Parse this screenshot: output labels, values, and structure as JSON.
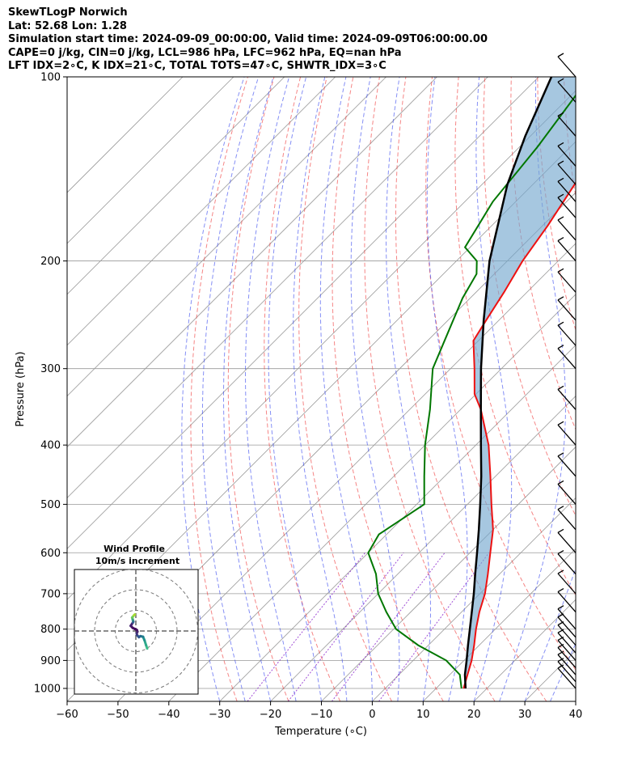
{
  "title_lines": [
    "SkewTLogP Norwich",
    "Lat: 52.68   Lon: 1.28",
    "Simulation start time: 2024-09-09_00:00:00, Valid time: 2024-09-09T06:00:00.00",
    "CAPE=0 j/kg, CIN=0 j/kg, LCL=986 hPa, LFC=962 hPa, EQ=nan hPa",
    "LFT IDX=2∘C, K IDX=21∘C, TOTAL TOTS=47∘C, SHWTR_IDX=3∘C"
  ],
  "colors": {
    "temperature": "#ee1111",
    "dewpoint": "#007700",
    "parcel": "#000000",
    "cape_fill": "#76a9d0",
    "dry_adiabat": "#ee3333",
    "moist_adiabat": "#3344ee",
    "mixing_ratio": "#8822cc",
    "isotherm": "#999999",
    "isobar": "#999999"
  },
  "chart_data": [
    {
      "type": "line",
      "name": "skewt",
      "xlabel": "Temperature (∘C)",
      "ylabel": "Pressure (hPa)",
      "xlim": [
        -60,
        40
      ],
      "ylim": [
        1050,
        100
      ],
      "y_scale": "log",
      "skew_deg": 45,
      "grid": true,
      "x_ticks": [
        -60,
        -50,
        -40,
        -30,
        -20,
        -10,
        0,
        10,
        20,
        30,
        40
      ],
      "x_tick_labels": [
        "−60",
        "−50",
        "−40",
        "−30",
        "−20",
        "−10",
        "0",
        "10",
        "20",
        "30",
        "40"
      ],
      "y_ticks": [
        1000,
        900,
        800,
        700,
        600,
        500,
        400,
        300,
        200,
        100
      ],
      "y_tick_labels": [
        "1000",
        "900",
        "800",
        "700",
        "600",
        "500",
        "400",
        "300",
        "200",
        "100"
      ],
      "series": [
        {
          "key": "temperature",
          "points": [
            [
              1000,
              15.4
            ],
            [
              950,
              13.5
            ],
            [
              900,
              11.5
            ],
            [
              850,
              9.0
            ],
            [
              800,
              6.2
            ],
            [
              750,
              3.5
            ],
            [
              700,
              1.0
            ],
            [
              650,
              -2.3
            ],
            [
              600,
              -6.0
            ],
            [
              550,
              -10.0
            ],
            [
              500,
              -15.3
            ],
            [
              450,
              -21.0
            ],
            [
              400,
              -27.5
            ],
            [
              350,
              -36.0
            ],
            [
              330,
              -40.3
            ],
            [
              300,
              -45.3
            ],
            [
              270,
              -51.0
            ],
            [
              250,
              -52.5
            ],
            [
              225,
              -54.5
            ],
            [
              200,
              -57.0
            ],
            [
              175,
              -59.0
            ],
            [
              150,
              -61.8
            ],
            [
              125,
              -65.0
            ],
            [
              110,
              -67.5
            ],
            [
              100,
              -69.3
            ]
          ]
        },
        {
          "key": "dewpoint",
          "points": [
            [
              1000,
              15.0
            ],
            [
              950,
              12.0
            ],
            [
              900,
              6.5
            ],
            [
              850,
              -2.0
            ],
            [
              800,
              -9.5
            ],
            [
              750,
              -14.8
            ],
            [
              700,
              -20.0
            ],
            [
              650,
              -24.3
            ],
            [
              600,
              -30.0
            ],
            [
              560,
              -31.5
            ],
            [
              500,
              -28.5
            ],
            [
              450,
              -34.0
            ],
            [
              400,
              -40.0
            ],
            [
              350,
              -46.0
            ],
            [
              300,
              -53.5
            ],
            [
              250,
              -59.0
            ],
            [
              230,
              -61.5
            ],
            [
              210,
              -63.5
            ],
            [
              200,
              -66.0
            ],
            [
              190,
              -71.0
            ],
            [
              160,
              -74.5
            ],
            [
              130,
              -76.5
            ],
            [
              100,
              -80.0
            ]
          ]
        },
        {
          "key": "parcel",
          "points": [
            [
              1000,
              15.8
            ],
            [
              950,
              13.0
            ],
            [
              900,
              10.5
            ],
            [
              850,
              7.8
            ],
            [
              800,
              5.0
            ],
            [
              750,
              2.0
            ],
            [
              700,
              -1.2
            ],
            [
              650,
              -4.8
            ],
            [
              600,
              -8.6
            ],
            [
              550,
              -12.8
            ],
            [
              500,
              -17.5
            ],
            [
              450,
              -22.8
            ],
            [
              400,
              -29.0
            ],
            [
              350,
              -36.0
            ],
            [
              300,
              -44.0
            ],
            [
              250,
              -53.0
            ],
            [
              200,
              -63.5
            ],
            [
              150,
              -75.0
            ],
            [
              125,
              -81.0
            ],
            [
              100,
              -87.5
            ]
          ]
        }
      ],
      "wind_barbs_hpa": [
        1000,
        975,
        950,
        925,
        900,
        875,
        850,
        825,
        800,
        750,
        700,
        650,
        600,
        550,
        500,
        450,
        400,
        350,
        300,
        275,
        250,
        225,
        200,
        185,
        170,
        160,
        150,
        140,
        125,
        110,
        100
      ]
    },
    {
      "type": "line",
      "name": "hodograph",
      "title": "Wind Profile",
      "subtitle": "10m/s increment",
      "ring_increment_ms": 10,
      "rings": [
        1,
        2,
        3
      ],
      "points_uv": [
        [
          5.5,
          -8.5
        ],
        [
          5.0,
          -7.0
        ],
        [
          4.2,
          -4.5
        ],
        [
          3.5,
          -2.8
        ],
        [
          2.2,
          -2.5
        ],
        [
          1.5,
          -3.0
        ],
        [
          0.6,
          -2.0
        ],
        [
          0.4,
          -1.2
        ],
        [
          0.8,
          -0.3
        ],
        [
          0.5,
          0.5
        ],
        [
          -0.5,
          1.0
        ],
        [
          -1.5,
          1.5
        ],
        [
          -2.5,
          2.5
        ],
        [
          -1.5,
          4.0
        ],
        [
          -1.2,
          4.5
        ],
        [
          -1.5,
          5.5
        ],
        [
          -1.8,
          6.5
        ],
        [
          -1.0,
          7.5
        ],
        [
          -0.5,
          8.0
        ]
      ]
    }
  ]
}
